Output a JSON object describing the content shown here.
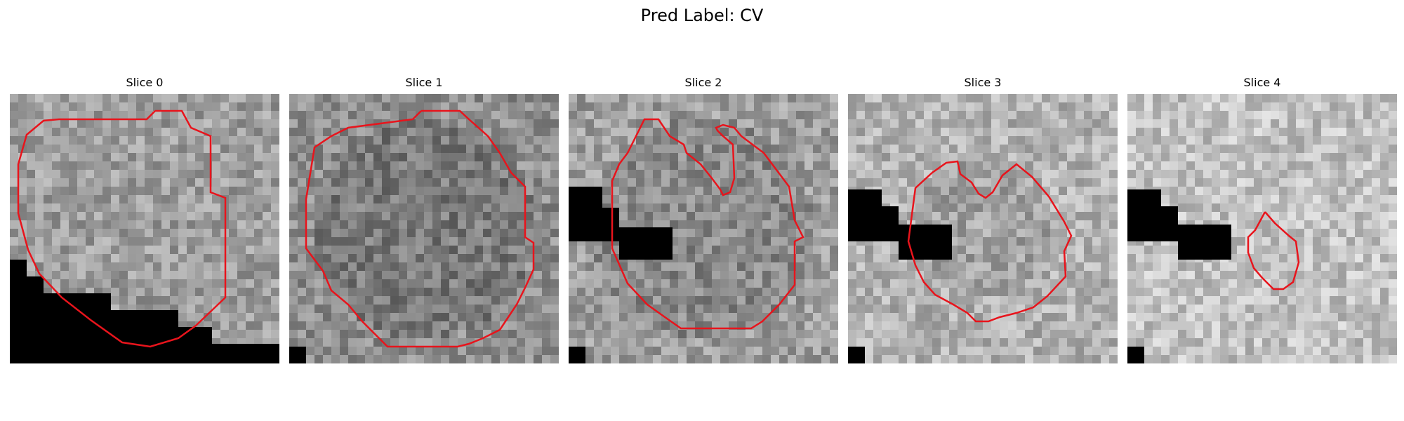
{
  "figure": {
    "title": "Pred Label: CV",
    "panels": [
      {
        "title": "Slice 0",
        "tone": 0.62
      },
      {
        "title": "Slice 1",
        "tone": 0.56
      },
      {
        "title": "Slice 2",
        "tone": 0.62
      },
      {
        "title": "Slice 3",
        "tone": 0.7
      },
      {
        "title": "Slice 4",
        "tone": 0.76
      }
    ],
    "contour_color": "#e8141c",
    "mask_color": "#000000"
  }
}
